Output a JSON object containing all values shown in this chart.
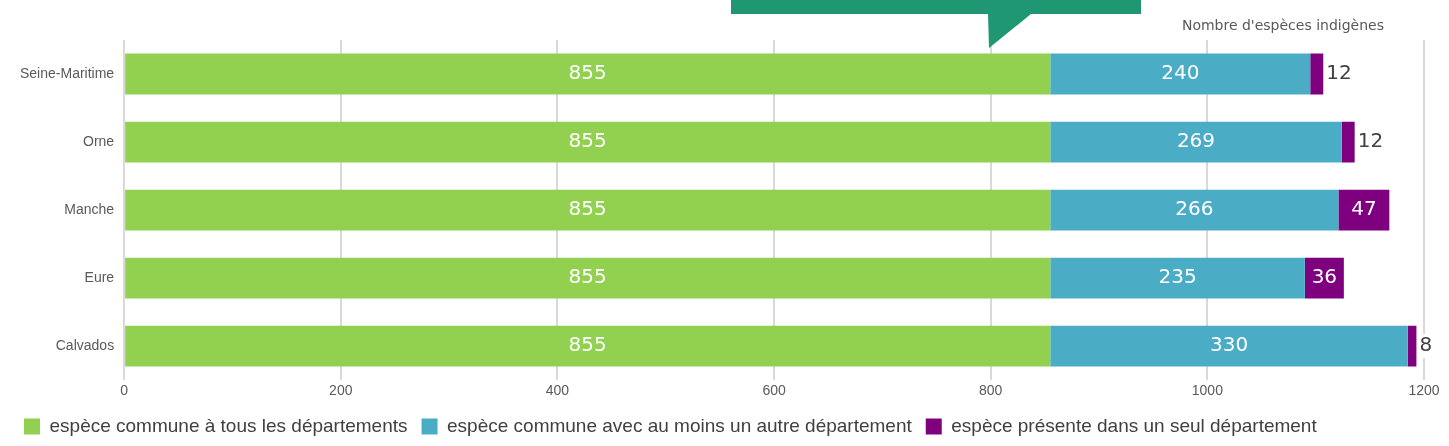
{
  "chart_data": {
    "type": "bar",
    "orientation": "horizontal",
    "stacked": true,
    "xlabel": "Nombre d'espèces indigènes",
    "categories": [
      "Seine-Maritime",
      "Orne",
      "Manche",
      "Eure",
      "Calvados"
    ],
    "series": [
      {
        "name": "espèce commune à tous les départements",
        "color": "#92d050",
        "values": [
          855,
          855,
          855,
          855,
          855
        ]
      },
      {
        "name": "espèce commune avec au moins un autre département",
        "color": "#4bacc6",
        "values": [
          240,
          269,
          266,
          235,
          330
        ]
      },
      {
        "name": "espèce présente dans un seul département",
        "color": "#7f007f",
        "values": [
          12,
          12,
          47,
          36,
          8
        ]
      }
    ],
    "xlim": [
      0,
      1200
    ],
    "xticks": [
      0,
      200,
      400,
      600,
      800,
      1000,
      1200
    ],
    "grid": "x",
    "legend": "bottom",
    "data_labels": true
  }
}
